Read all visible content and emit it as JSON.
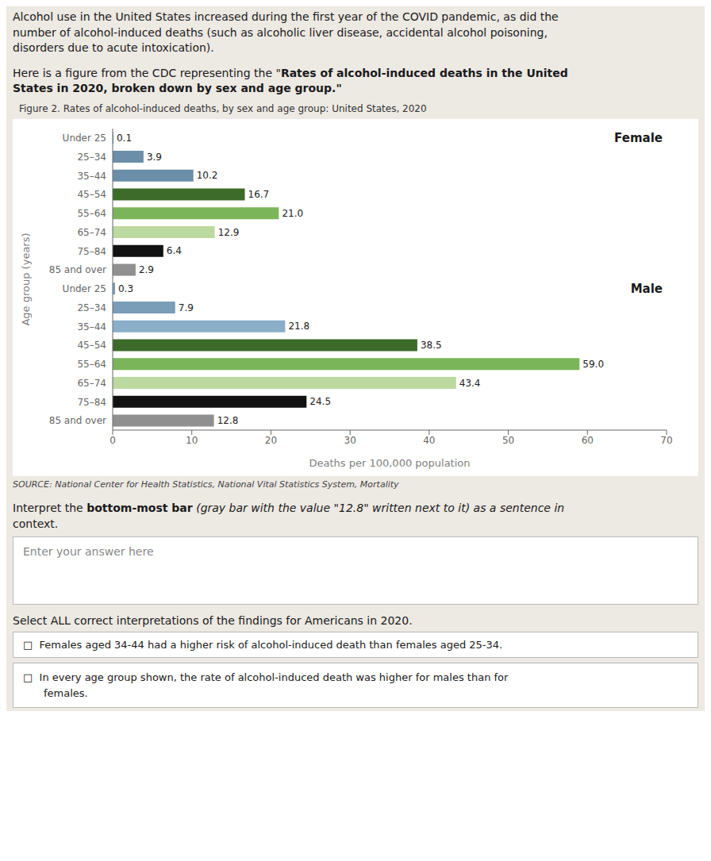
{
  "chart_data": {
    "type": "bar",
    "orientation": "horizontal",
    "title": "Figure 2. Rates of alcohol-induced deaths, by sex and age group: United States, 2020",
    "source": "SOURCE: National Center for Health Statistics, National Vital Statistics System, Mortality",
    "categories": [
      "Under 25",
      "25–34",
      "35–44",
      "45–54",
      "55–64",
      "65–74",
      "75–84",
      "85 and over",
      "Under 25",
      "25–34",
      "35–44",
      "45–54",
      "55–64",
      "65–74",
      "75–84",
      "85 and over"
    ],
    "series": [
      {
        "name": "Female",
        "values": [
          0.1,
          3.9,
          10.2,
          16.7,
          21.0,
          12.9,
          6.4,
          2.9,
          null,
          null,
          null,
          null,
          null,
          null,
          null,
          null
        ],
        "value_labels": [
          "0.1",
          "3.9",
          "10.2",
          "16.7",
          "21.0",
          "12.9",
          "6.4",
          "2.9",
          null,
          null,
          null,
          null,
          null,
          null,
          null,
          null
        ],
        "colors": [
          "#6b8fa8",
          "#6b8fa8",
          "#6b8fa8",
          "#3d6b2a",
          "#7ab55a",
          "#bcd9a0",
          "#111111",
          "#909090",
          null,
          null,
          null,
          null,
          null,
          null,
          null,
          null
        ]
      },
      {
        "name": "Male",
        "values": [
          null,
          null,
          null,
          null,
          null,
          null,
          null,
          null,
          0.3,
          7.9,
          21.8,
          38.5,
          59.0,
          43.4,
          24.5,
          12.8
        ],
        "value_labels": [
          null,
          null,
          null,
          null,
          null,
          null,
          null,
          null,
          "0.3",
          "7.9",
          "21.8",
          "38.5",
          "59.0",
          "43.4",
          "24.5",
          "12.8"
        ],
        "colors": [
          null,
          null,
          null,
          null,
          null,
          null,
          null,
          null,
          "#7a9db8",
          "#7a9db8",
          "#8aaec8",
          "#3d6b2a",
          "#7ab55a",
          "#bcd9a0",
          "#111111",
          "#909090"
        ]
      }
    ],
    "xlim": [
      0,
      70
    ],
    "xticks": [
      0,
      10,
      20,
      30,
      40,
      50,
      60,
      70
    ],
    "xlabel": "Deaths per 100,000 population",
    "ylabel": "Age group (years)",
    "data_labels": true
  },
  "page": {
    "bg_color": "#ede9e3",
    "chart_bg": "#ffffff",
    "intro_text": "Alcohol use in the United States increased during the first year of the COVID pandemic, as did the\nnumber of alcohol-induced deaths (such as alcoholic liver disease, accidental alcohol poisoning,\ndisorders due to acute intoxication).",
    "lead_plain": "Here is a figure from the CDC representing the \"",
    "lead_bold_1": "Rates of alcohol-induced deaths in the United",
    "lead_bold_2": "States in 2020, broken down by sex and age group.\"",
    "question_plain": "Interpret the ",
    "question_bold": "bottom-most bar",
    "question_italic": " (gray bar with the value \"12.8\" written next to it) as a sentence in",
    "question_end": "context.",
    "answer_placeholder": "Enter your answer here",
    "select_text": "Select ALL correct interpretations of the findings for Americans in 2020.",
    "checkbox": "□",
    "option1": "Females aged 34-44 had a higher risk of alcohol-induced death than females aged 25-34.",
    "option2_line1": "In every age group shown, the rate of alcohol-induced death was higher for males than for",
    "option2_line2": "females."
  }
}
